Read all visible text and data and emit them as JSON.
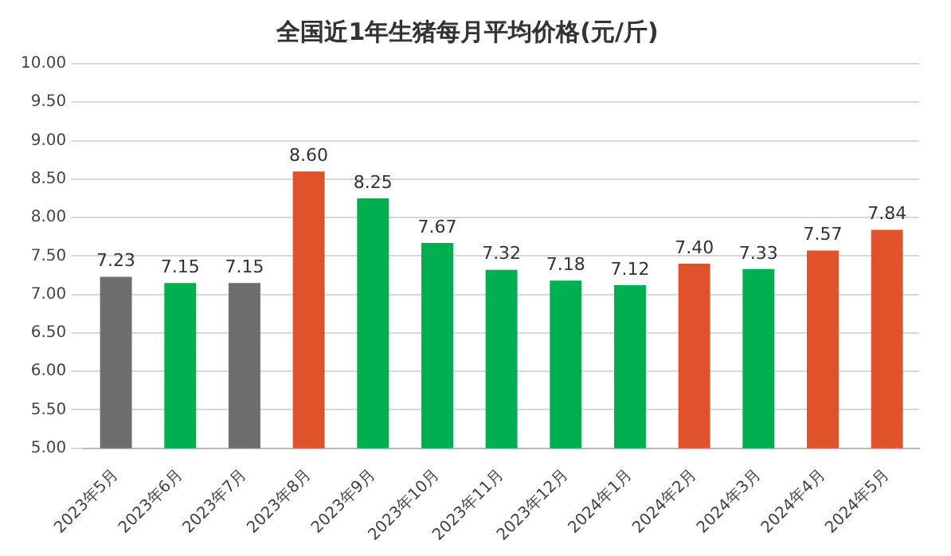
{
  "chart_data": {
    "type": "bar",
    "title": "全国近1年生猪每月平均价格(元/斤)",
    "categories": [
      "2023年5月",
      "2023年6月",
      "2023年7月",
      "2023年8月",
      "2023年9月",
      "2023年10月",
      "2023年11月",
      "2023年12月",
      "2024年1月",
      "2024年2月",
      "2024年3月",
      "2024年4月",
      "2024年5月"
    ],
    "values": [
      7.23,
      7.15,
      7.15,
      8.6,
      8.25,
      7.67,
      7.32,
      7.18,
      7.12,
      7.4,
      7.33,
      7.57,
      7.84
    ],
    "value_labels": [
      "7.23",
      "7.15",
      "7.15",
      "8.60",
      "8.25",
      "7.67",
      "7.32",
      "7.18",
      "7.12",
      "7.40",
      "7.33",
      "7.57",
      "7.84"
    ],
    "colors": [
      "#6d6d6d",
      "#00b050",
      "#6d6d6d",
      "#e0522a",
      "#00b050",
      "#00b050",
      "#00b050",
      "#00b050",
      "#00b050",
      "#e0522a",
      "#00b050",
      "#e0522a",
      "#e0522a"
    ],
    "ylim": [
      5,
      10
    ],
    "yticks": [
      {
        "value": 5,
        "label": "5.00"
      },
      {
        "value": 5.5,
        "label": "5.50"
      },
      {
        "value": 6,
        "label": "6.00"
      },
      {
        "value": 6.5,
        "label": "6.50"
      },
      {
        "value": 7,
        "label": "7.00"
      },
      {
        "value": 7.5,
        "label": "7.50"
      },
      {
        "value": 8,
        "label": "8.00"
      },
      {
        "value": 8.5,
        "label": "8.50"
      },
      {
        "value": 9,
        "label": "9.00"
      },
      {
        "value": 9.5,
        "label": "9.50"
      },
      {
        "value": 10,
        "label": "10.00"
      }
    ],
    "grid": "y",
    "legend": false
  }
}
